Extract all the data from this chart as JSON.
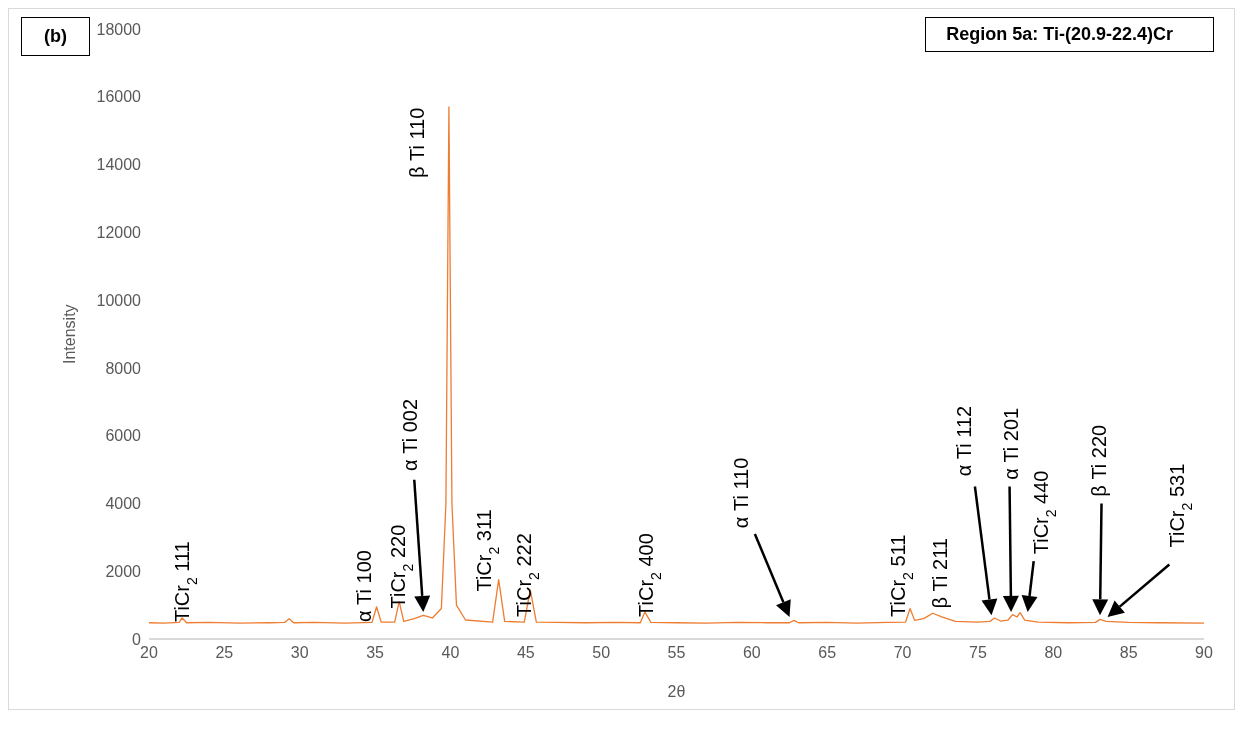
{
  "chart_data": {
    "type": "line",
    "title": "Region 5a: Ti-(20.9-22.4)Cr",
    "xlabel": "2θ",
    "ylabel": "Intensity",
    "color": "#ed7d31",
    "grid": false,
    "legend": false,
    "marker": "none",
    "line_style": "solid",
    "xlim": [
      20,
      90
    ],
    "xticks": [
      20,
      25,
      30,
      35,
      40,
      45,
      50,
      55,
      60,
      65,
      70,
      75,
      80,
      85,
      90
    ],
    "ylim": [
      0,
      18000
    ],
    "yticks": [
      0,
      2000,
      4000,
      6000,
      8000,
      10000,
      12000,
      14000,
      16000,
      18000
    ],
    "x": [
      20,
      21,
      22,
      22.2,
      22.5,
      24,
      26,
      28,
      29,
      29.3,
      29.6,
      31,
      33,
      34.8,
      35.1,
      35.4,
      36.3,
      36.6,
      36.9,
      37.6,
      38.2,
      38.8,
      39.4,
      39.7,
      39.9,
      40.1,
      40.4,
      41,
      42.8,
      43.2,
      43.6,
      44.9,
      45.3,
      45.7,
      47,
      49,
      51,
      52.6,
      52.9,
      53.3,
      55,
      57,
      59,
      61,
      62.5,
      62.8,
      63.1,
      65,
      67,
      69,
      70.2,
      70.5,
      70.8,
      71.4,
      72,
      72.6,
      73.5,
      75,
      75.8,
      76.1,
      76.5,
      77,
      77.3,
      77.6,
      77.8,
      78.1,
      79,
      81,
      82.8,
      83.1,
      83.5,
      85,
      87,
      90
    ],
    "values": [
      480,
      470,
      490,
      620,
      480,
      490,
      470,
      480,
      490,
      600,
      480,
      490,
      470,
      490,
      950,
      500,
      500,
      1100,
      520,
      600,
      700,
      620,
      900,
      4000,
      15700,
      4000,
      1000,
      560,
      500,
      1750,
      520,
      500,
      1450,
      500,
      490,
      480,
      490,
      480,
      800,
      490,
      480,
      470,
      490,
      480,
      480,
      550,
      480,
      490,
      470,
      490,
      500,
      900,
      550,
      600,
      760,
      650,
      520,
      500,
      520,
      620,
      530,
      560,
      720,
      650,
      780,
      560,
      500,
      480,
      490,
      580,
      520,
      490,
      480,
      470
    ],
    "annotations": [
      "(b)",
      "TiCr$_{2}$ 111",
      "α Ti 100",
      "TiCr$_{2}$ 220",
      "α Ti 002",
      "β Ti 110",
      "TiCr$_{2}$ 311",
      "TiCr$_{2}$ 222",
      "TiCr$_{2}$ 400",
      "α Ti 110",
      "TiCr$_{2}$ 511",
      "β Ti 211",
      "α Ti 112",
      "α Ti 201",
      "TiCr$_{2}$ 440",
      "β Ti 220",
      "TiCr$_{2}$ 531"
    ]
  }
}
